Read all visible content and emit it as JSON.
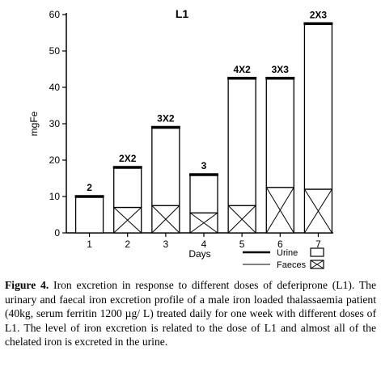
{
  "chart_data": {
    "type": "bar",
    "title": "L1",
    "xlabel": "Days",
    "ylabel": "mgFe",
    "ylim": [
      0,
      60
    ],
    "yticks": [
      0,
      10,
      20,
      30,
      40,
      50,
      60
    ],
    "categories": [
      "1",
      "2",
      "3",
      "4",
      "5",
      "6",
      "7"
    ],
    "dose_labels": [
      "2",
      "2X2",
      "3X2",
      "3",
      "4X2",
      "3X3",
      "2X3"
    ],
    "series": [
      {
        "name": "Faeces",
        "values": [
          0,
          7,
          7.5,
          5.5,
          7.5,
          12.5,
          12
        ]
      },
      {
        "name": "Urine",
        "values": [
          10,
          11,
          21.5,
          10.5,
          35,
          30,
          45.5
        ]
      }
    ],
    "totals": [
      10,
      18,
      29,
      16,
      42.5,
      42.5,
      57.5
    ],
    "stacked": true,
    "grid": false,
    "legend_position": "bottom-right",
    "legend": [
      {
        "label": "Urine",
        "style": "open"
      },
      {
        "label": "Faeces",
        "style": "hatched"
      }
    ]
  },
  "caption": {
    "label": "Figure 4.",
    "text": "Iron excretion in response to different doses of deferiprone (L1). The urinary and faecal iron excretion profile of a male iron loaded thalassaemia patient (40kg, serum ferritin 1200 µg/ L) treated daily for one week with different doses of L1. The level of iron excretion is related to the dose of L1 and almost all of the chelated iron is excreted in the urine."
  }
}
